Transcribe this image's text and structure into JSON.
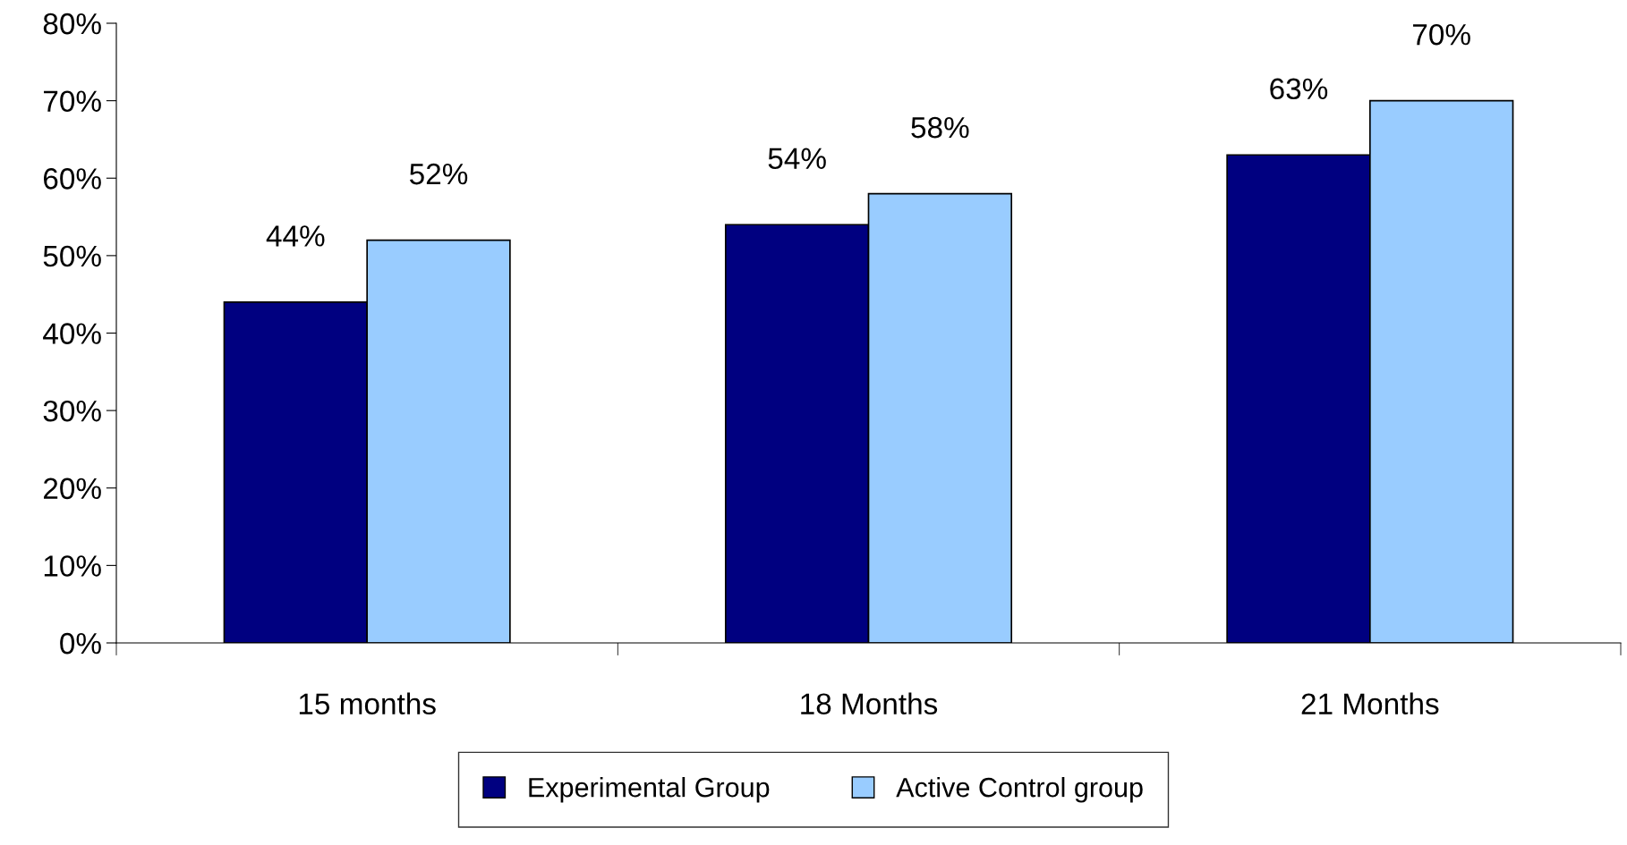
{
  "chart_data": {
    "type": "bar",
    "categories": [
      "15 months",
      "18 Months",
      "21 Months"
    ],
    "series": [
      {
        "name": "Experimental Group",
        "color": "#000080",
        "values": [
          44,
          54,
          63
        ]
      },
      {
        "name": "Active Control group",
        "color": "#99ccff",
        "values": [
          52,
          58,
          70
        ]
      }
    ],
    "ylim": [
      0,
      80
    ],
    "yticks": [
      {
        "value": 0,
        "label": "0%"
      },
      {
        "value": 10,
        "label": "10%"
      },
      {
        "value": 20,
        "label": "20%"
      },
      {
        "value": 30,
        "label": "30%"
      },
      {
        "value": 40,
        "label": "40%"
      },
      {
        "value": 50,
        "label": "50%"
      },
      {
        "value": 60,
        "label": "60%"
      },
      {
        "value": 70,
        "label": "70%"
      },
      {
        "value": 80,
        "label": "80%"
      }
    ],
    "value_labels": [
      [
        "44%",
        "54%",
        "63%"
      ],
      [
        "52%",
        "58%",
        "70%"
      ]
    ],
    "legend": "bottom",
    "grid": false
  }
}
